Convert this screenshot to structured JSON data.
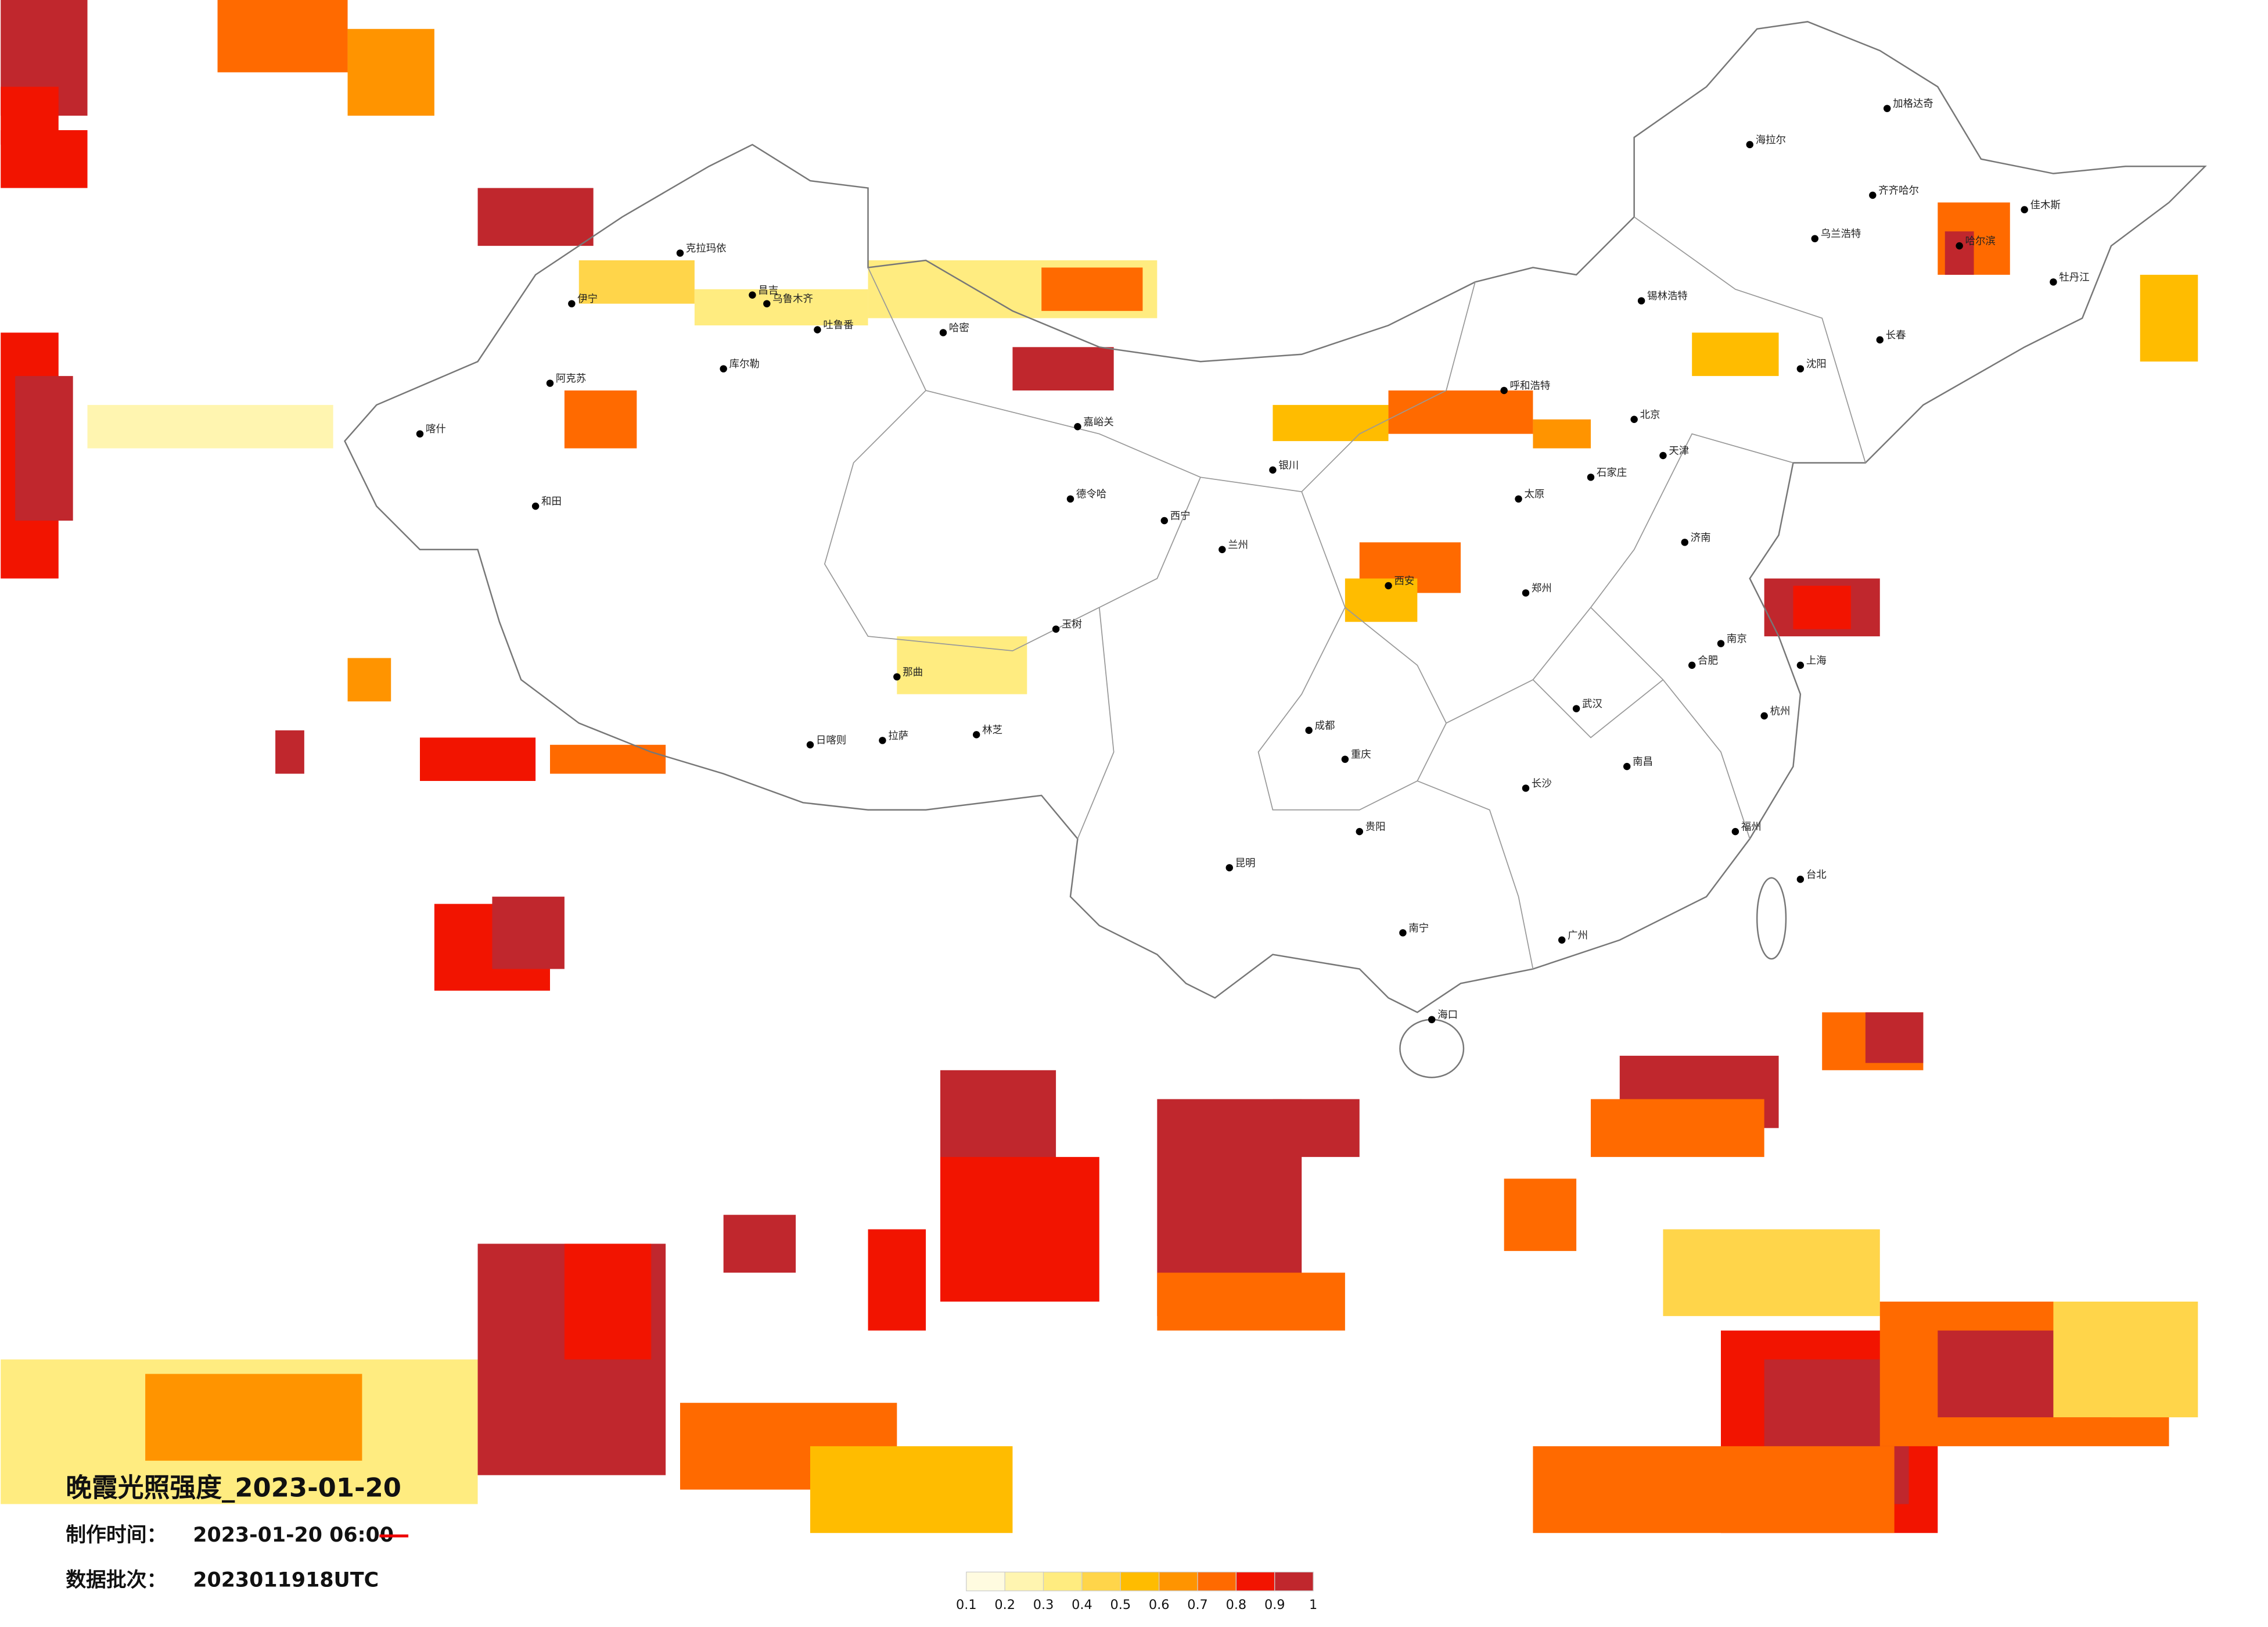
{
  "title": "晚霞光照强度_2023-01-20",
  "production": {
    "label": "制作时间：",
    "value": "2023-01-20 06:00"
  },
  "batch": {
    "label": "数据批次：",
    "value": "2023011918UTC"
  },
  "legend": {
    "ticks": [
      0.1,
      0.2,
      0.3,
      0.4,
      0.5,
      0.6,
      0.7,
      0.8,
      0.9,
      1
    ],
    "colors": [
      "#fffbe0",
      "#fff5b0",
      "#ffec80",
      "#ffd54a",
      "#ffbc00",
      "#ff9400",
      "#ff6a00",
      "#f21400",
      "#c0272d"
    ]
  },
  "cities": [
    "乌鲁木齐",
    "昌吉",
    "伊宁",
    "克拉玛依",
    "阿克苏",
    "喀什",
    "和田",
    "库尔勒",
    "吐鲁番",
    "哈密",
    "嘉峪关",
    "德令哈",
    "玉树",
    "那曲",
    "日喀则",
    "拉萨",
    "林芝",
    "西宁",
    "兰州",
    "银川",
    "呼和浩特",
    "北京",
    "天津",
    "石家庄",
    "太原",
    "济南",
    "郑州",
    "西安",
    "成都",
    "重庆",
    "贵阳",
    "昆明",
    "南宁",
    "广州",
    "长沙",
    "武汉",
    "南昌",
    "合肥",
    "南京",
    "上海",
    "杭州",
    "福州",
    "海口",
    "台北",
    "沈阳",
    "长春",
    "哈尔滨",
    "海拉尔",
    "加格达奇",
    "齐齐哈尔",
    "佳木斯",
    "牡丹江",
    "锡林浩特",
    "乌兰浩特"
  ]
}
